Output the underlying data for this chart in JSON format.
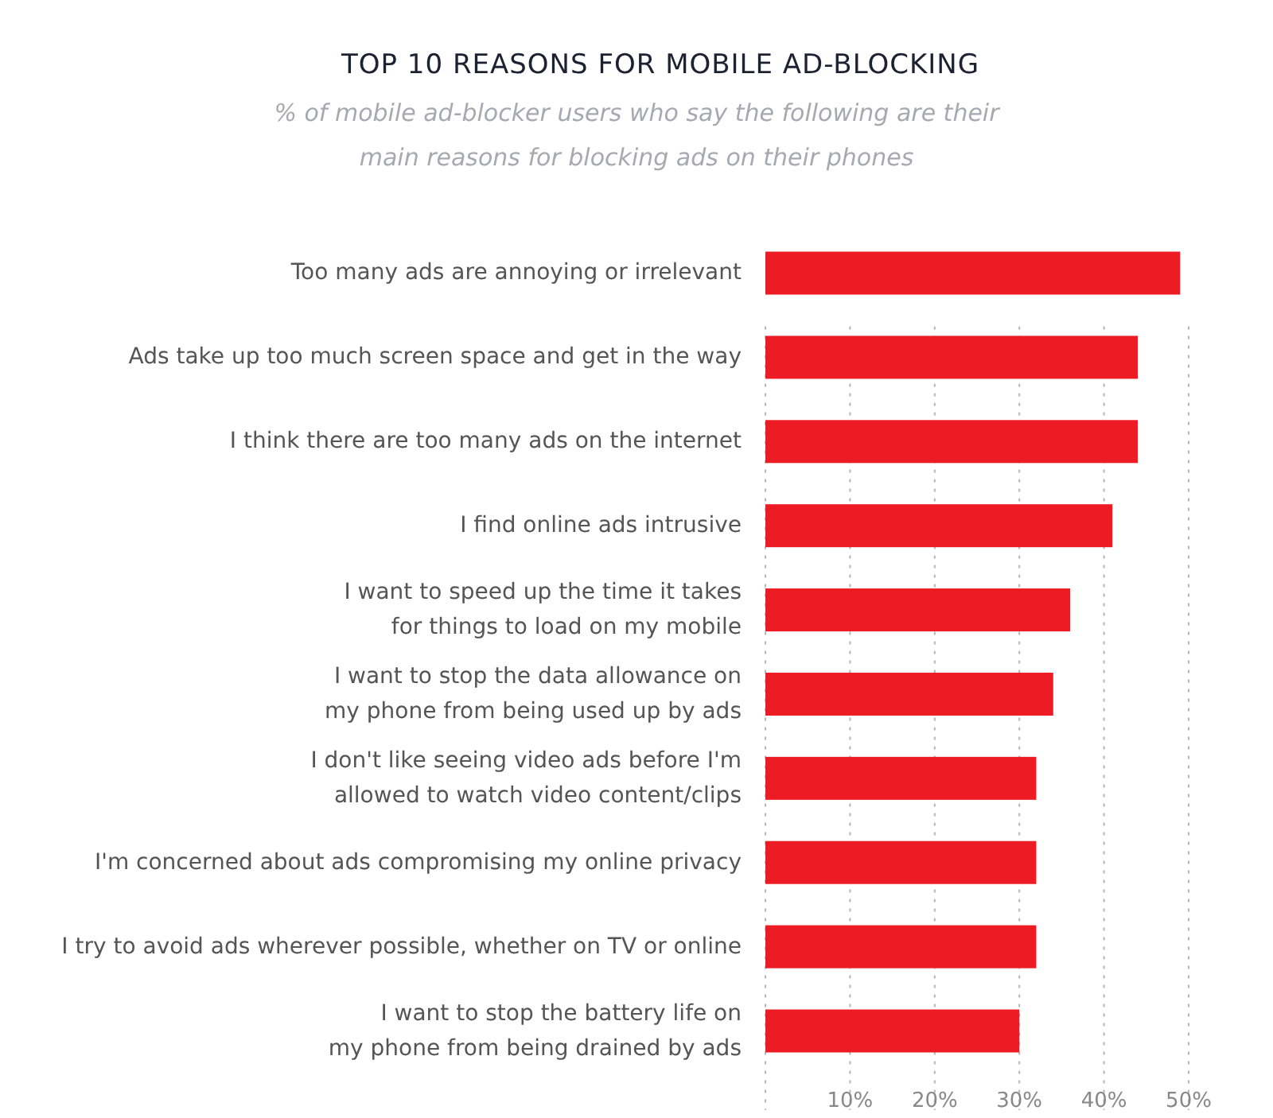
{
  "chart_data": {
    "type": "bar",
    "orientation": "horizontal",
    "title": "TOP 10 REASONS FOR MOBILE AD-BLOCKING",
    "subtitle": "% of mobile ad-blocker users who say the following are their\nmain reasons for blocking ads on their phones",
    "categories": [
      "Too many ads are annoying or irrelevant",
      "Ads take up too much screen space and get in the way",
      "I think there are too many ads on the internet",
      "I find online ads intrusive",
      "I want to speed up the time it takes\nfor things to load on my mobile",
      "I want to stop the data allowance on\nmy phone from being used up by ads",
      "I don't like seeing video ads before I'm\nallowed to watch video content/clips",
      "I'm concerned about ads compromising my online privacy",
      "I try to avoid ads wherever possible, whether on TV or online",
      "I want to stop the battery life on\nmy phone from being drained by ads"
    ],
    "values": [
      49,
      44,
      44,
      41,
      36,
      34,
      32,
      32,
      32,
      30
    ],
    "color": "#ed1c24",
    "xlim": [
      0,
      50
    ],
    "xticks": [
      {
        "value": 0,
        "label": null
      },
      {
        "value": 10,
        "label": "10%"
      },
      {
        "value": 20,
        "label": "20%"
      },
      {
        "value": 30,
        "label": "30%"
      },
      {
        "value": 40,
        "label": "40%"
      },
      {
        "value": 50,
        "label": "50%"
      }
    ],
    "grid": "x"
  }
}
